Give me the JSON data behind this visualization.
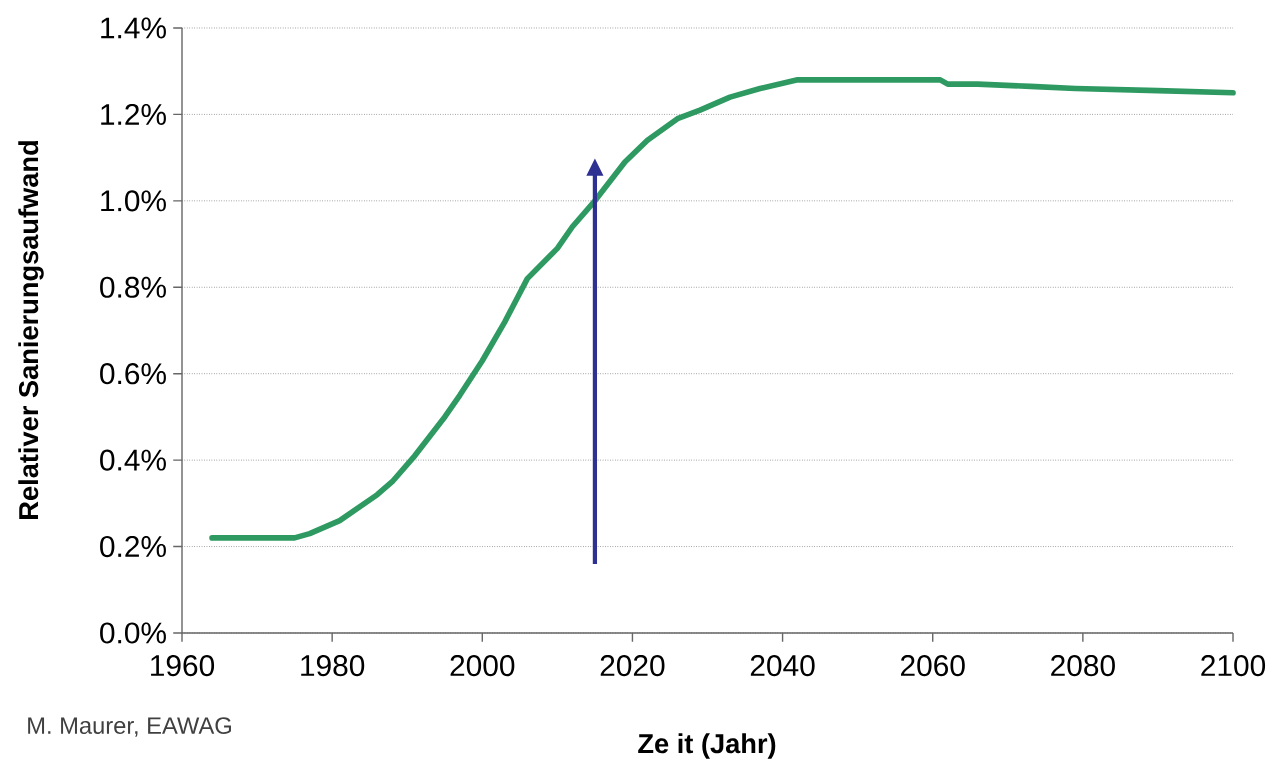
{
  "chart_data": {
    "type": "line",
    "xlabel": "Ze it (Jahr)",
    "ylabel": "Relativer Sanierungsaufwand",
    "annotations": [
      "M. Maurer, EAWAG"
    ],
    "x": [
      1964,
      1975,
      1977,
      1981,
      1986,
      1988,
      1991,
      1995,
      1997,
      2000,
      2003,
      2006,
      2010,
      2012,
      2015,
      2019,
      2022,
      2026,
      2029,
      2033,
      2037,
      2042,
      2061,
      2062,
      2066,
      2073,
      2079,
      2090,
      2100
    ],
    "series": [
      {
        "color": "#2e9a62",
        "values": [
          0.22,
          0.22,
          0.23,
          0.26,
          0.32,
          0.35,
          0.41,
          0.5,
          0.55,
          0.63,
          0.72,
          0.82,
          0.89,
          0.94,
          1.0,
          1.09,
          1.14,
          1.19,
          1.21,
          1.24,
          1.26,
          1.28,
          1.28,
          1.27,
          1.27,
          1.265,
          1.26,
          1.255,
          1.25
        ]
      }
    ],
    "xlim": [
      1960,
      2100
    ],
    "xticks": [
      1960,
      1980,
      2000,
      2020,
      2040,
      2060,
      2080,
      2100
    ],
    "ylim": [
      0,
      1.4
    ],
    "yticks": [
      {
        "value": 0,
        "label": "0.0%"
      },
      {
        "value": 0.2,
        "label": "0.2%"
      },
      {
        "value": 0.4,
        "label": "0.4%"
      },
      {
        "value": 0.6,
        "label": "0.6%"
      },
      {
        "value": 0.8,
        "label": "0.8%"
      },
      {
        "value": 1.0,
        "label": "1.0%"
      },
      {
        "value": 1.2,
        "label": "1.2%"
      },
      {
        "value": 1.4,
        "label": "1.4%"
      }
    ],
    "ref_lines": [
      {
        "axis": "x",
        "value": 2015,
        "color": "#2e3192"
      }
    ],
    "grid": "y"
  }
}
